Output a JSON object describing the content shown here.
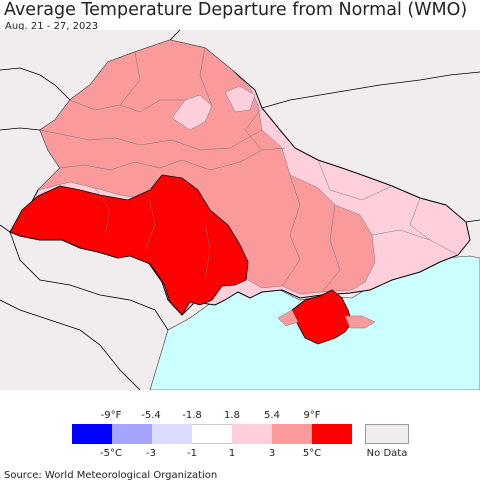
{
  "header": {
    "title": "Average Temperature Departure from Normal (WMO)",
    "date_range": "Aug. 21 - 27, 2023"
  },
  "colors": {
    "background": "#f1edef",
    "sea": "#ccffff",
    "border": "#000000",
    "region_border": "#777777",
    "bin_lt_minus5": "#0000ff",
    "bin_minus5_minus3": "#a5a5ff",
    "bin_minus3_minus1": "#dcdcff",
    "bin_minus1_1": "#ffffff",
    "bin_1_3": "#ffd0dc",
    "bin_3_5": "#fb9a9a",
    "bin_gt_5": "#ff0000",
    "no_data": "#f1edef"
  },
  "legend": {
    "fahrenheit_ticks": [
      "-9°F",
      "-5.4",
      "-1.8",
      "1.8",
      "5.4",
      "9°F"
    ],
    "celsius_ticks": [
      "-5°C",
      "-3",
      "-1",
      "1",
      "3",
      "5°C"
    ],
    "no_data_label": "No Data"
  },
  "footer": {
    "source": "Source: World Meteorological Organization"
  }
}
